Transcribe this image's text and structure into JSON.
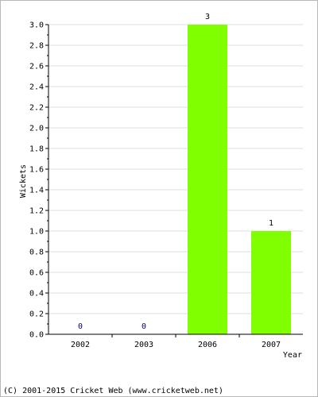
{
  "chart_data": {
    "type": "bar",
    "categories": [
      "2002",
      "2003",
      "2006",
      "2007"
    ],
    "values": [
      0,
      0,
      3,
      1
    ],
    "data_labels": [
      "0",
      "0",
      "3",
      "1"
    ],
    "title": "",
    "xlabel": "Year",
    "ylabel": "Wickets",
    "ylim": [
      0,
      3
    ],
    "y_ticks": [
      "0.0",
      "0.2",
      "0.4",
      "0.6",
      "0.8",
      "1.0",
      "1.2",
      "1.4",
      "1.6",
      "1.8",
      "2.0",
      "2.2",
      "2.4",
      "2.6",
      "2.8",
      "3.0"
    ],
    "grid": true,
    "legend": "none",
    "colors": {
      "bar": "#80ff00",
      "grid": "#dddddd",
      "axis": "#000000",
      "zero_label": "#000080",
      "value_label": "#000000"
    }
  },
  "footer": "(C) 2001-2015 Cricket Web (www.cricketweb.net)"
}
